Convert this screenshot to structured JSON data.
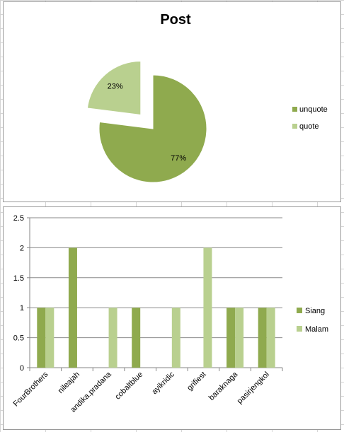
{
  "chart_data": [
    {
      "type": "pie",
      "title": "Post",
      "labels": [
        "unquote",
        "quote"
      ],
      "values": [
        77,
        23
      ],
      "data_labels": [
        "77%",
        "23%"
      ],
      "colors": [
        "#8faa4e",
        "#b9d08f"
      ],
      "exploded": true,
      "legend": "right"
    },
    {
      "type": "bar",
      "categories": [
        "FourBrothers",
        "nileajah",
        "andika.pradana",
        "cobaltblue",
        "ayikridic",
        "grifiest",
        "baraknaga",
        "pasirjengkol"
      ],
      "series": [
        {
          "name": "Siang",
          "values": [
            1,
            2,
            0,
            1,
            0,
            0,
            1,
            1
          ],
          "color": "#8faa4e"
        },
        {
          "name": "Malam",
          "values": [
            1,
            0,
            1,
            0,
            1,
            2,
            1,
            1
          ],
          "color": "#b9d08f"
        }
      ],
      "ylim": [
        0,
        2.5
      ],
      "yticks": [
        "0",
        "0.5",
        "1",
        "1.5",
        "2",
        "2.5"
      ],
      "grid": true,
      "legend": "right"
    }
  ]
}
